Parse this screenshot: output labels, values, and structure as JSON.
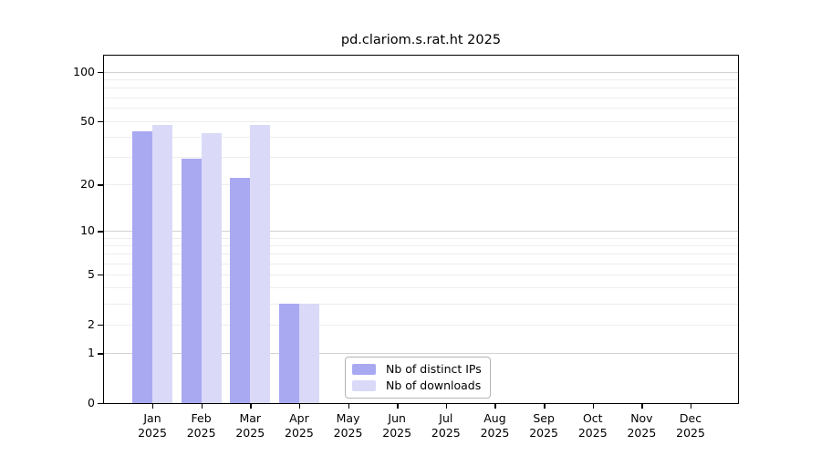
{
  "figure": {
    "title": "pd.clariom.s.rat.ht 2025"
  },
  "chart_data": {
    "type": "bar",
    "title": "pd.clariom.s.rat.ht 2025",
    "xlabel": "",
    "ylabel": "",
    "yscale": "log1p",
    "ylim": [
      0,
      128
    ],
    "grid": true,
    "categories": [
      "Jan",
      "Feb",
      "Mar",
      "Apr",
      "May",
      "Jun",
      "Jul",
      "Aug",
      "Sep",
      "Oct",
      "Nov",
      "Dec"
    ],
    "year": "2025",
    "series": [
      {
        "name": "Nb of distinct IPs",
        "color": "#a9a9f2",
        "values": [
          43,
          29,
          22,
          3,
          0,
          0,
          0,
          0,
          0,
          0,
          0,
          0
        ]
      },
      {
        "name": "Nb of downloads",
        "color": "#dadaf8",
        "values": [
          47,
          42,
          47,
          3,
          0,
          0,
          0,
          0,
          0,
          0,
          0,
          0
        ]
      }
    ],
    "ytick_labels": [
      100,
      50,
      20,
      10,
      5,
      2,
      1,
      0
    ],
    "major_gridlines": [
      1,
      10,
      100
    ],
    "minor_gridlines": [
      2,
      3,
      4,
      5,
      6,
      7,
      8,
      9,
      20,
      30,
      40,
      50,
      60,
      70,
      80,
      90
    ],
    "legend_position": "lower center"
  },
  "colors": {
    "background": "#ffffff",
    "axis_spine": "#000000",
    "major_grid": "#d2d2d2",
    "minor_grid": "#ededed",
    "legend_border": "#b4b4b4",
    "text": "#000000",
    "bar_distinct_ips": "#a9a9f2",
    "bar_downloads": "#dadaf8"
  }
}
